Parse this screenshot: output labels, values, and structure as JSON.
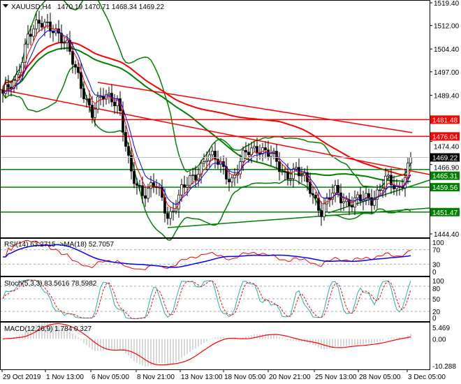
{
  "header": {
    "symbol": "XAUUSD,H4",
    "ohlc": "1470.19 1470.71 1468.34 1469.22"
  },
  "chart_data": {
    "type": "candlestick",
    "symbol": "XAUUSD",
    "timeframe": "H4",
    "ylim": [
      1444.4,
      1519.4
    ],
    "price_ticks": [
      "1519.40",
      "1512.00",
      "1504.40",
      "1497.00",
      "1489.40",
      "1474.40",
      "1466.90",
      "1444.40"
    ],
    "price_tick_values": [
      1519.4,
      1512.0,
      1504.4,
      1497.0,
      1489.4,
      1474.4,
      1466.9,
      1444.4
    ],
    "current_price": {
      "label": "1469.22",
      "value": 1469.22
    },
    "levels": [
      {
        "label": "1481.48",
        "value": 1481.48,
        "color": "#ff0000"
      },
      {
        "label": "1476.04",
        "value": 1476.04,
        "color": "#ff0000"
      },
      {
        "label": "1465.31",
        "value": 1465.31,
        "color": "#008000"
      },
      {
        "label": "1459.56",
        "value": 1459.56,
        "color": "#008000"
      },
      {
        "label": "1451.47",
        "value": 1451.47,
        "color": "#008000"
      }
    ],
    "close_anchors": [
      1490,
      1493,
      1510,
      1512,
      1512,
      1505,
      1495,
      1483,
      1490,
      1488,
      1464,
      1458,
      1460,
      1450,
      1458,
      1463,
      1470,
      1467,
      1462,
      1470,
      1473,
      1470,
      1464,
      1465,
      1460,
      1452,
      1458,
      1455,
      1455,
      1456,
      1462,
      1458,
      1469.22
    ],
    "x_labels": [
      "29 Oct 2019",
      "1 Nov 13:00",
      "6 Nov 05:00",
      "8 Nov 21:00",
      "13 Nov 13:00",
      "18 Nov 05:00",
      "20 Nov 21:00",
      "25 Nov 13:00",
      "28 Nov 05:00",
      "3 Dec 05:00"
    ],
    "rsi": {
      "title": "RSI(14) 63.2715  ->MA(18) 52.7057",
      "ticks": [
        "100",
        "70",
        "30",
        "0"
      ],
      "value": 63.2715,
      "ma": 52.7057
    },
    "stoch": {
      "title": "Stoch(5,3,3) 83.5616 78.5982",
      "ticks": [
        "100",
        "80",
        "50",
        "20",
        "0"
      ],
      "k": 83.5616,
      "d": 78.5982
    },
    "macd": {
      "title": "MACD(12,26,9) 1.784 0.327",
      "ticks": [
        "5.469",
        "0.00",
        "-10.288"
      ],
      "range": [
        -10.288,
        5.469
      ],
      "main": 1.784,
      "signal": 0.327
    }
  }
}
